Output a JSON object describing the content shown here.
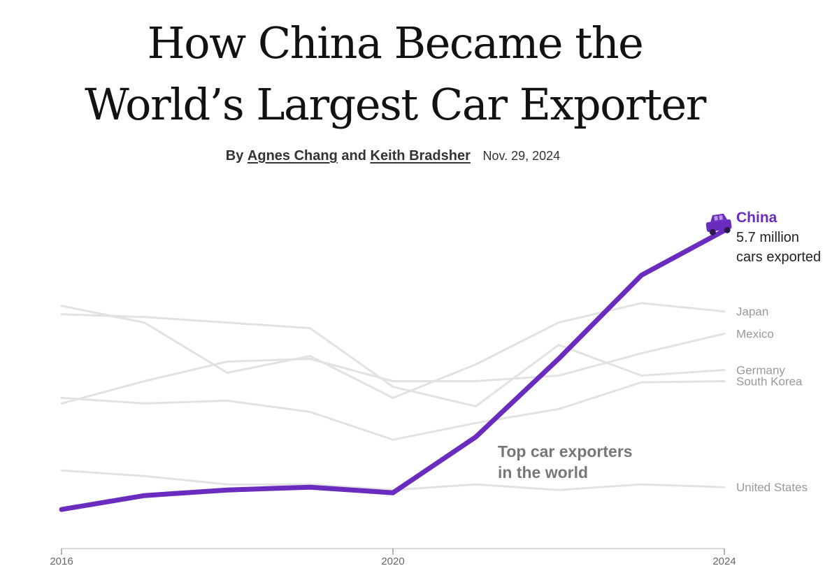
{
  "article": {
    "headline_line1": "How China Became the",
    "headline_line2": "World’s Largest Car Exporter",
    "byline_prefix": "By",
    "author1": "Agnes Chang",
    "byline_and": "and",
    "author2": "Keith Bradsher",
    "date": "Nov. 29, 2024"
  },
  "chart_data": {
    "type": "line",
    "title": "",
    "annotation_line1": "Top car exporters",
    "annotation_line2": "in the world",
    "xlabel": "",
    "ylabel": "",
    "x": [
      2016,
      2017,
      2018,
      2019,
      2020,
      2021,
      2022,
      2023,
      2024
    ],
    "x_ticks": [
      "2016",
      "2020",
      "2024"
    ],
    "ylim": [
      0,
      6.3
    ],
    "grid": false,
    "highlight": {
      "name": "China",
      "value_line1": "5.7 million",
      "value_line2": "cars exported",
      "color": "#6a2bbf"
    },
    "series": [
      {
        "name": "China",
        "values": [
          0.7,
          0.95,
          1.05,
          1.1,
          1.0,
          2.0,
          3.4,
          4.9,
          5.7
        ],
        "color": "#6a2bbf"
      },
      {
        "name": "Japan",
        "values": [
          4.35,
          4.05,
          3.15,
          3.45,
          2.7,
          3.3,
          4.05,
          4.4,
          4.25
        ]
      },
      {
        "name": "Mexico",
        "values": [
          2.6,
          3.0,
          3.35,
          3.4,
          3.0,
          3.0,
          3.1,
          3.5,
          3.85
        ]
      },
      {
        "name": "Germany",
        "values": [
          4.2,
          4.15,
          4.05,
          3.95,
          2.9,
          2.55,
          3.65,
          3.1,
          3.2
        ]
      },
      {
        "name": "South Korea",
        "values": [
          2.7,
          2.6,
          2.65,
          2.45,
          1.95,
          2.25,
          2.5,
          2.98,
          3.0
        ]
      },
      {
        "name": "United States",
        "values": [
          1.4,
          1.3,
          1.15,
          1.15,
          1.05,
          1.15,
          1.05,
          1.15,
          1.1
        ]
      }
    ],
    "colors": {
      "context": "#e2e2e2",
      "label": "#999999",
      "axis": "#cccccc"
    }
  }
}
